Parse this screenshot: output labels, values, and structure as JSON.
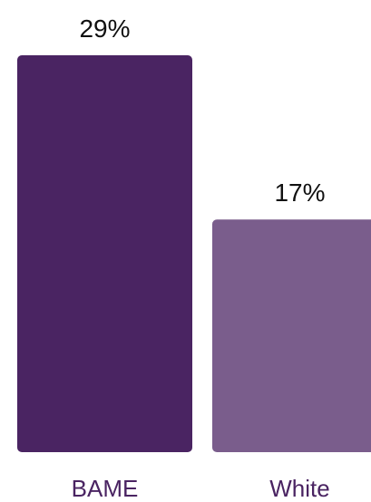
{
  "chart_data": {
    "type": "bar",
    "categories": [
      "BAME",
      "White"
    ],
    "values": [
      29,
      17
    ],
    "value_labels": [
      "29%",
      "17%"
    ],
    "unit": "%",
    "ylim": [
      0,
      29
    ],
    "grid": false,
    "legend": "none",
    "colors": {
      "bars": [
        "#4a2462",
        "#7a5d8c"
      ],
      "category_text": "#4a2462",
      "value_text": "#111111",
      "background": "#ffffff"
    }
  }
}
